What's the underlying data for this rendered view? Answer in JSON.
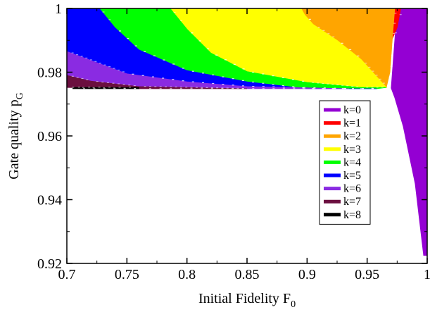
{
  "chart_data": {
    "type": "heatmap",
    "title": "",
    "xlabel": "Initial Fidelity F",
    "xlabel_sub": "0",
    "ylabel": "Gate quality p",
    "ylabel_sub": "G",
    "xlim": [
      0.7,
      1.0
    ],
    "ylim": [
      0.92,
      1.0
    ],
    "x_ticks": [
      0.7,
      0.75,
      0.8,
      0.85,
      0.9,
      0.95,
      1.0
    ],
    "x_tick_labels": [
      "0.7",
      "0.75",
      "0.8",
      "0.85",
      "0.9",
      "0.95",
      "1"
    ],
    "y_ticks": [
      0.92,
      0.94,
      0.96,
      0.98,
      1.0
    ],
    "y_tick_labels": [
      "0.92",
      "0.94",
      "0.96",
      "0.98",
      "1"
    ],
    "grid": false,
    "legend_position": "right",
    "series": [
      {
        "name": "k=0",
        "color": "#9400d3",
        "region": [
          [
            0.97,
            0.975
          ],
          [
            0.975,
            1.0
          ],
          [
            1.0,
            1.0
          ],
          [
            1.0,
            0.9225
          ],
          [
            0.997,
            0.9225
          ],
          [
            0.99,
            0.945
          ],
          [
            0.98,
            0.963
          ],
          [
            0.973,
            0.972
          ]
        ]
      },
      {
        "name": "k=1",
        "color": "#ff0000",
        "region": [
          [
            0.973,
            1.0
          ],
          [
            0.978,
            1.0
          ],
          [
            0.975,
            0.994
          ],
          [
            0.971,
            0.9905
          ]
        ]
      },
      {
        "name": "k=2",
        "color": "#ffa500",
        "region": [
          [
            0.895,
            1.0
          ],
          [
            0.973,
            1.0
          ],
          [
            0.971,
            0.9905
          ],
          [
            0.969,
            0.98
          ],
          [
            0.966,
            0.9752
          ],
          [
            0.945,
            0.984
          ],
          [
            0.925,
            0.99
          ],
          [
            0.905,
            0.995
          ],
          [
            0.898,
            0.998
          ]
        ]
      },
      {
        "name": "k=3",
        "color": "#ffff00",
        "region": [
          [
            0.786,
            1.0
          ],
          [
            0.895,
            1.0
          ],
          [
            0.898,
            0.998
          ],
          [
            0.905,
            0.995
          ],
          [
            0.925,
            0.99
          ],
          [
            0.945,
            0.984
          ],
          [
            0.966,
            0.9752
          ],
          [
            0.945,
            0.9752
          ],
          [
            0.9,
            0.9768
          ],
          [
            0.85,
            0.9802
          ],
          [
            0.82,
            0.986
          ],
          [
            0.8,
            0.9935
          ]
        ]
      },
      {
        "name": "k=4",
        "color": "#00ff00",
        "region": [
          [
            0.727,
            1.0
          ],
          [
            0.786,
            1.0
          ],
          [
            0.8,
            0.9935
          ],
          [
            0.82,
            0.986
          ],
          [
            0.85,
            0.9802
          ],
          [
            0.9,
            0.9768
          ],
          [
            0.945,
            0.9752
          ],
          [
            0.966,
            0.9752
          ],
          [
            0.958,
            0.9748
          ],
          [
            0.9,
            0.9748
          ],
          [
            0.85,
            0.977
          ],
          [
            0.8,
            0.9805
          ],
          [
            0.76,
            0.987
          ],
          [
            0.74,
            0.994
          ]
        ]
      },
      {
        "name": "k=5",
        "color": "#0000ff",
        "region": [
          [
            0.7,
            1.0
          ],
          [
            0.727,
            1.0
          ],
          [
            0.74,
            0.994
          ],
          [
            0.76,
            0.987
          ],
          [
            0.8,
            0.9805
          ],
          [
            0.85,
            0.977
          ],
          [
            0.9,
            0.9748
          ],
          [
            0.958,
            0.9748
          ],
          [
            0.935,
            0.9748
          ],
          [
            0.85,
            0.9755
          ],
          [
            0.8,
            0.977
          ],
          [
            0.75,
            0.9795
          ],
          [
            0.7,
            0.9865
          ]
        ]
      },
      {
        "name": "k=6",
        "color": "#8a2be2",
        "region": [
          [
            0.7,
            0.9865
          ],
          [
            0.75,
            0.9795
          ],
          [
            0.8,
            0.977
          ],
          [
            0.85,
            0.9755
          ],
          [
            0.935,
            0.9748
          ],
          [
            0.85,
            0.9748
          ],
          [
            0.76,
            0.9755
          ],
          [
            0.72,
            0.9772
          ],
          [
            0.7,
            0.979
          ]
        ]
      },
      {
        "name": "k=7",
        "color": "#6b0f3f",
        "region": [
          [
            0.7,
            0.979
          ],
          [
            0.72,
            0.9772
          ],
          [
            0.76,
            0.9755
          ],
          [
            0.85,
            0.9748
          ],
          [
            0.76,
            0.9748
          ],
          [
            0.7,
            0.9752
          ]
        ]
      },
      {
        "name": "k=8",
        "color": "#000000",
        "region": [
          [
            0.705,
            0.9752
          ],
          [
            0.76,
            0.9752
          ],
          [
            0.76,
            0.9748
          ],
          [
            0.705,
            0.9748
          ]
        ]
      }
    ]
  }
}
